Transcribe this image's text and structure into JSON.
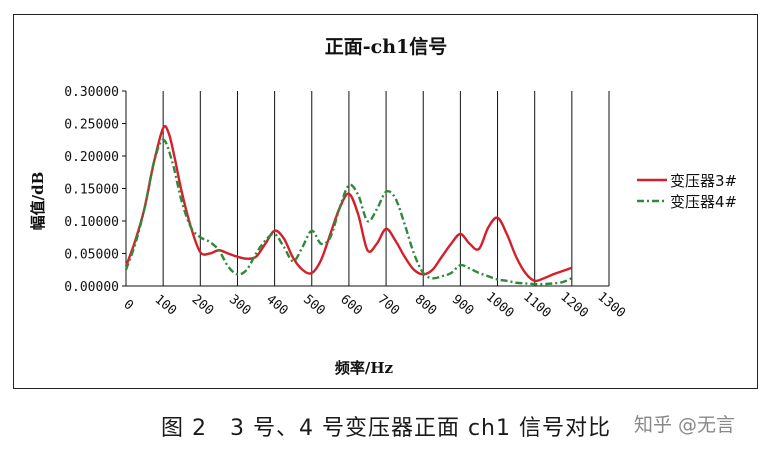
{
  "chart_data": {
    "type": "line",
    "title": "正面-ch1信号",
    "xlabel": "频率/Hz",
    "ylabel": "幅值/dB",
    "x_ticks": [
      0,
      100,
      200,
      300,
      400,
      500,
      600,
      700,
      800,
      900,
      1000,
      1100,
      1200,
      1300
    ],
    "y_ticks": [
      "0.00000",
      "0.05000",
      "0.10000",
      "0.15000",
      "0.20000",
      "0.25000",
      "0.30000"
    ],
    "xlim": [
      0,
      1300
    ],
    "ylim": [
      0,
      0.3
    ],
    "grid": "vertical",
    "legend_position": "right",
    "series": [
      {
        "name": "变压器3#",
        "color": "#d4202a",
        "style": "solid",
        "x": [
          0,
          25,
          50,
          75,
          100,
          115,
          130,
          150,
          175,
          200,
          225,
          250,
          275,
          300,
          325,
          350,
          375,
          400,
          425,
          450,
          475,
          500,
          525,
          550,
          575,
          600,
          625,
          650,
          675,
          700,
          725,
          750,
          775,
          800,
          825,
          850,
          875,
          900,
          925,
          950,
          975,
          1000,
          1025,
          1050,
          1075,
          1100,
          1125,
          1150,
          1175,
          1200
        ],
        "y": [
          0.03,
          0.07,
          0.12,
          0.19,
          0.243,
          0.235,
          0.2,
          0.145,
          0.09,
          0.052,
          0.05,
          0.055,
          0.05,
          0.045,
          0.042,
          0.045,
          0.065,
          0.085,
          0.073,
          0.043,
          0.025,
          0.02,
          0.04,
          0.08,
          0.12,
          0.142,
          0.11,
          0.055,
          0.065,
          0.088,
          0.07,
          0.045,
          0.025,
          0.018,
          0.025,
          0.045,
          0.065,
          0.08,
          0.065,
          0.057,
          0.09,
          0.105,
          0.08,
          0.045,
          0.02,
          0.008,
          0.012,
          0.018,
          0.023,
          0.028
        ]
      },
      {
        "name": "变压器4#",
        "color": "#2e8a3a",
        "style": "dash-dot",
        "x": [
          0,
          25,
          50,
          75,
          100,
          125,
          150,
          175,
          200,
          225,
          250,
          275,
          300,
          325,
          350,
          375,
          400,
          425,
          450,
          475,
          500,
          525,
          550,
          575,
          600,
          625,
          650,
          675,
          700,
          725,
          750,
          775,
          800,
          825,
          850,
          875,
          900,
          925,
          950,
          975,
          1000,
          1025,
          1050,
          1075,
          1100,
          1125,
          1150,
          1175,
          1200
        ],
        "y": [
          0.025,
          0.065,
          0.12,
          0.19,
          0.225,
          0.19,
          0.13,
          0.09,
          0.075,
          0.068,
          0.055,
          0.03,
          0.018,
          0.025,
          0.05,
          0.07,
          0.08,
          0.06,
          0.038,
          0.06,
          0.085,
          0.065,
          0.075,
          0.12,
          0.155,
          0.14,
          0.1,
          0.118,
          0.145,
          0.135,
          0.095,
          0.05,
          0.02,
          0.012,
          0.015,
          0.02,
          0.032,
          0.027,
          0.02,
          0.015,
          0.01,
          0.008,
          0.005,
          0.004,
          0.003,
          0.003,
          0.004,
          0.006,
          0.012
        ]
      }
    ]
  },
  "caption": "图 2　3 号、4 号变压器正面 ch1 信号对比",
  "watermark": "知乎 @无言"
}
